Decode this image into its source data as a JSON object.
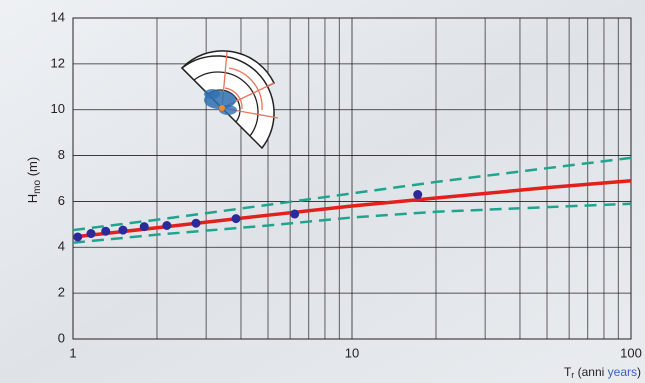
{
  "chart_data": {
    "type": "line",
    "xscale": "log",
    "xlim": [
      1,
      100
    ],
    "ylim": [
      0,
      14
    ],
    "xticks": [
      1,
      10,
      100
    ],
    "x_minor_grid": [
      2,
      3,
      4,
      5,
      6,
      7,
      8,
      9,
      20,
      30,
      40,
      50,
      60,
      70,
      80,
      90
    ],
    "yticks": [
      0,
      2,
      4,
      6,
      8,
      10,
      12,
      14
    ],
    "grid": true,
    "ylabel": [
      "H",
      "mo",
      " (m)"
    ],
    "xlabel": [
      "T",
      "r",
      " (anni ",
      "years",
      ")"
    ],
    "series": [
      {
        "color": "#20a48e",
        "style": "dashed",
        "x": [
          1,
          2,
          5,
          10,
          20,
          50,
          100
        ],
        "values": [
          4.75,
          5.2,
          5.85,
          6.35,
          6.85,
          7.45,
          7.9
        ]
      },
      {
        "color": "#20a48e",
        "style": "dashed",
        "x": [
          1,
          2,
          5,
          10,
          20,
          50,
          100
        ],
        "values": [
          4.2,
          4.55,
          4.95,
          5.3,
          5.55,
          5.75,
          5.9
        ]
      },
      {
        "color": "#e4201c",
        "style": "solid",
        "x": [
          1,
          2,
          5,
          10,
          20,
          50,
          100
        ],
        "values": [
          4.45,
          4.85,
          5.4,
          5.8,
          6.15,
          6.6,
          6.9
        ]
      },
      {
        "color": "#2a2a9a",
        "style": "points",
        "x": [
          1.04,
          1.16,
          1.31,
          1.51,
          1.8,
          2.17,
          2.76,
          3.84,
          6.23,
          17.2
        ],
        "values": [
          4.45,
          4.6,
          4.7,
          4.75,
          4.9,
          4.95,
          5.05,
          5.25,
          5.45,
          6.3
        ]
      }
    ]
  }
}
